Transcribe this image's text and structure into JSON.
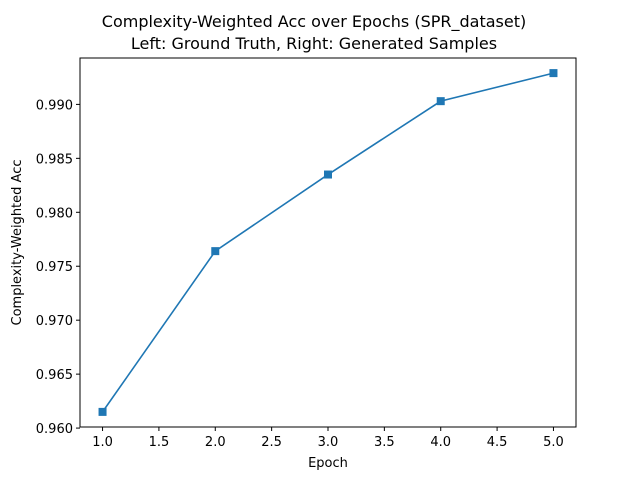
{
  "chart_data": {
    "type": "line",
    "title": "Complexity-Weighted Acc over Epochs (SPR_dataset)",
    "subtitle": "Left: Ground Truth, Right: Generated Samples",
    "xlabel": "Epoch",
    "ylabel": "Complexity-Weighted Acc",
    "xlim": [
      0.8,
      5.2
    ],
    "ylim": [
      0.9601,
      0.9943
    ],
    "x_ticks": [
      1.0,
      1.5,
      2.0,
      2.5,
      3.0,
      3.5,
      4.0,
      4.5,
      5.0
    ],
    "x_tick_labels": [
      "1.0",
      "1.5",
      "2.0",
      "2.5",
      "3.0",
      "3.5",
      "4.0",
      "4.5",
      "5.0"
    ],
    "y_ticks": [
      0.96,
      0.965,
      0.97,
      0.975,
      0.98,
      0.985,
      0.99
    ],
    "y_tick_labels": [
      "0.960",
      "0.965",
      "0.970",
      "0.975",
      "0.980",
      "0.985",
      "0.990"
    ],
    "grid": false,
    "series": [
      {
        "x": [
          1,
          2,
          3,
          4,
          5
        ],
        "values": [
          0.9615,
          0.9764,
          0.9835,
          0.9903,
          0.9929
        ],
        "color": "#1f77b4",
        "marker": "square"
      }
    ]
  }
}
